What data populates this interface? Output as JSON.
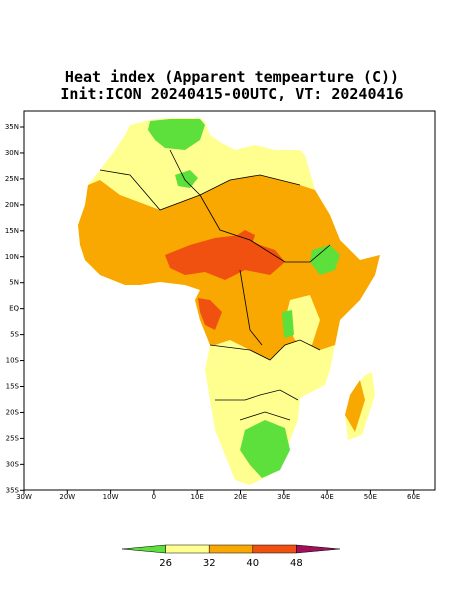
{
  "title": [
    "Heat index (Apparent tempearture (C))",
    "Init:ICON 20240415-00UTC, VT: 20240416"
  ],
  "map": {
    "xticks": [
      "30W",
      "20W",
      "10W",
      "0",
      "10E",
      "20E",
      "30E",
      "40E",
      "50E",
      "60E"
    ],
    "yticks": [
      "35N",
      "30N",
      "25N",
      "20N",
      "15N",
      "10N",
      "5N",
      "EQ",
      "5S",
      "10S",
      "15S",
      "20S",
      "25S",
      "30S",
      "35S"
    ]
  },
  "colorbar": {
    "ticks": [
      26,
      32,
      40,
      48
    ],
    "colors": [
      "#5ee03c",
      "#ffff90",
      "#f8a800",
      "#f05010",
      "#a0105a"
    ]
  }
}
